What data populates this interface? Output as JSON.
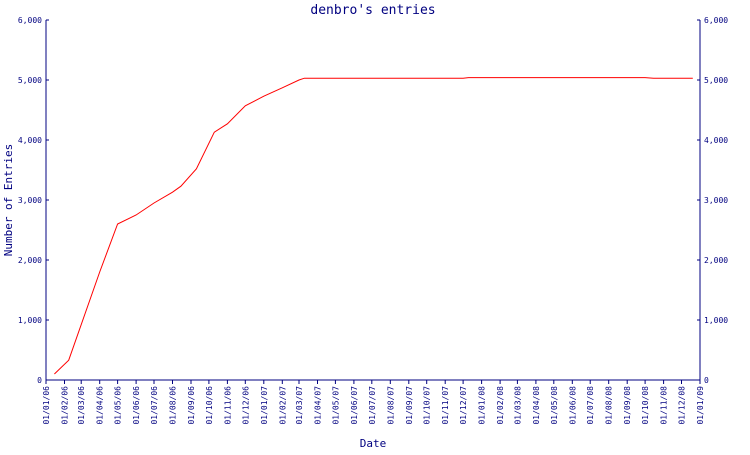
{
  "chart_data": {
    "type": "line",
    "title": "denbro's entries",
    "xlabel": "Date",
    "ylabel": "Number of Entries",
    "ylim": [
      0,
      6000
    ],
    "y_ticks": [
      {
        "value": 0,
        "label": "0"
      },
      {
        "value": 1000,
        "label": "1,000"
      },
      {
        "value": 2000,
        "label": "2,000"
      },
      {
        "value": 3000,
        "label": "3,000"
      },
      {
        "value": 4000,
        "label": "4,000"
      },
      {
        "value": 5000,
        "label": "5,000"
      },
      {
        "value": 6000,
        "label": "6,000"
      }
    ],
    "x_ticks": [
      "01/01/06",
      "01/02/06",
      "01/03/06",
      "01/04/06",
      "01/05/06",
      "01/06/06",
      "01/07/06",
      "01/08/06",
      "01/09/06",
      "01/10/06",
      "01/11/06",
      "01/12/06",
      "01/01/07",
      "01/02/07",
      "01/03/07",
      "01/04/07",
      "01/05/07",
      "01/06/07",
      "01/07/07",
      "01/08/07",
      "01/09/07",
      "01/10/07",
      "01/11/07",
      "01/12/07",
      "01/01/08",
      "01/02/08",
      "01/03/08",
      "01/04/08",
      "01/05/08",
      "01/06/08",
      "01/07/08",
      "01/08/08",
      "01/09/08",
      "01/10/08",
      "01/11/08",
      "01/12/08",
      "01/01/09"
    ],
    "series": [
      {
        "color": "#ff0000",
        "points": [
          {
            "x": "2006-01-15",
            "y": 100
          },
          {
            "x": "2006-02-08",
            "y": 330
          },
          {
            "x": "2006-04-01",
            "y": 1800
          },
          {
            "x": "2006-05-01",
            "y": 2600
          },
          {
            "x": "2006-06-01",
            "y": 2750
          },
          {
            "x": "2006-07-01",
            "y": 2950
          },
          {
            "x": "2006-08-01",
            "y": 3130
          },
          {
            "x": "2006-08-15",
            "y": 3230
          },
          {
            "x": "2006-09-10",
            "y": 3520
          },
          {
            "x": "2006-10-10",
            "y": 4130
          },
          {
            "x": "2006-11-01",
            "y": 4270
          },
          {
            "x": "2006-12-01",
            "y": 4570
          },
          {
            "x": "2007-01-01",
            "y": 4730
          },
          {
            "x": "2007-02-01",
            "y": 4870
          },
          {
            "x": "2007-03-01",
            "y": 5000
          },
          {
            "x": "2007-03-10",
            "y": 5030
          },
          {
            "x": "2007-12-01",
            "y": 5030
          },
          {
            "x": "2007-12-10",
            "y": 5040
          },
          {
            "x": "2008-10-01",
            "y": 5040
          },
          {
            "x": "2008-10-15",
            "y": 5030
          },
          {
            "x": "2008-12-20",
            "y": 5030
          }
        ]
      }
    ],
    "grid": false,
    "legend": "none",
    "right_axis": true
  }
}
